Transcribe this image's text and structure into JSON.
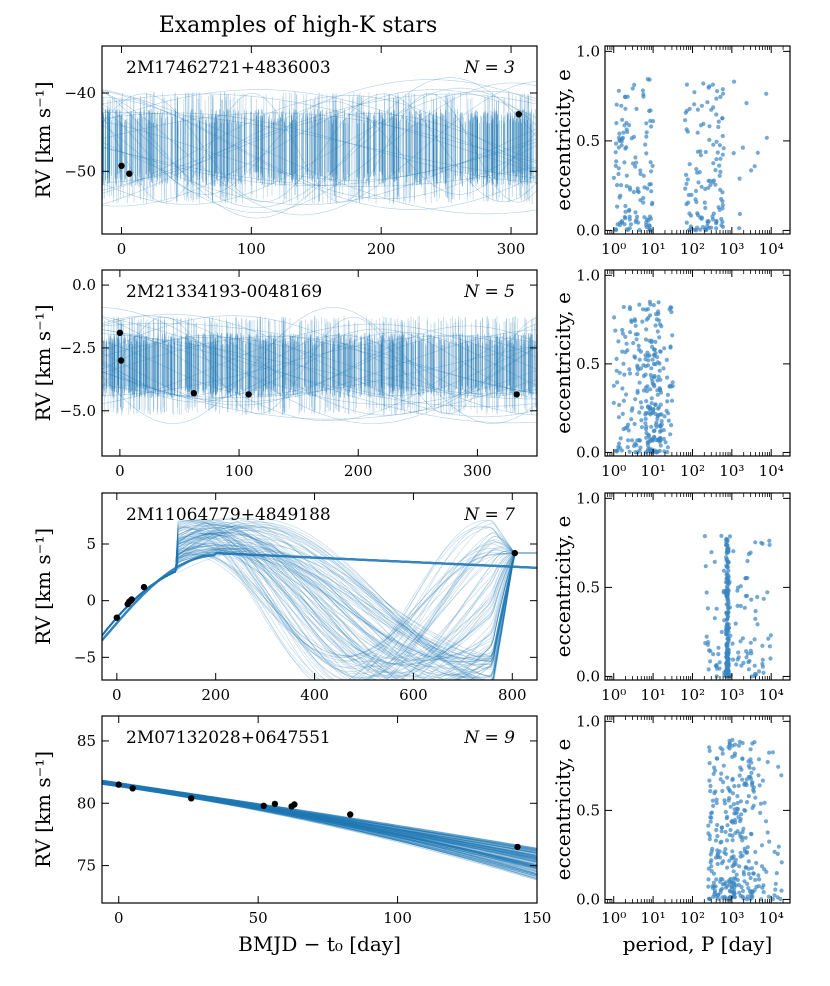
{
  "figure_title": "Examples of high-K stars",
  "colors": {
    "model_lines": "#1f77b4",
    "scatter": "#3a86c2",
    "data_points": "#000000",
    "axes": "#000000"
  },
  "chart_data": [
    {
      "type": "line",
      "panel": "rv-1",
      "title": "2M17462721+4836003",
      "n_label": "N = 3",
      "xlabel": "",
      "ylabel": "RV [km s⁻¹]",
      "xlim": [
        -15,
        320
      ],
      "ylim": [
        -58,
        -34
      ],
      "xticks": [
        0,
        100,
        200,
        300
      ],
      "xtick_labels": [
        "0",
        "100",
        "200",
        "300"
      ],
      "yticks": [
        -40,
        -50
      ],
      "ytick_labels": [
        "−40",
        "−50"
      ],
      "model": {
        "kind": "periodic_band",
        "center": -47,
        "amplitude": 5,
        "spread": 12,
        "sample_count": 220
      },
      "observations": {
        "x": [
          0,
          6,
          306
        ],
        "y": [
          -49.3,
          -50.3,
          -42.7
        ]
      }
    },
    {
      "type": "scatter",
      "panel": "ecc-1",
      "xlabel": "",
      "ylabel": "eccentricity, e",
      "xscale": "log",
      "xlim": [
        0.6,
        30000
      ],
      "ylim": [
        -0.02,
        1.03
      ],
      "xtick_labels": [
        "10⁰",
        "10¹",
        "10²",
        "10³",
        "10⁴"
      ],
      "yticks": [
        0.0,
        0.5,
        1.0
      ],
      "ytick_labels": [
        "0.0",
        "0.5",
        "1.0"
      ],
      "samples": {
        "log_period_ranges": [
          [
            0,
            1
          ],
          [
            1.8,
            2.8
          ],
          [
            3,
            4
          ]
        ],
        "weights": [
          0.45,
          0.5,
          0.05
        ],
        "count": 260,
        "emax": 0.85
      }
    },
    {
      "type": "line",
      "panel": "rv-2",
      "title": "2M21334193-0048169",
      "n_label": "N = 5",
      "xlabel": "",
      "ylabel": "RV [km s⁻¹]",
      "xlim": [
        -15,
        350
      ],
      "ylim": [
        -6.8,
        0.6
      ],
      "xticks": [
        0,
        100,
        200,
        300
      ],
      "xtick_labels": [
        "0",
        "100",
        "200",
        "300"
      ],
      "yticks": [
        0,
        -2.5,
        -5
      ],
      "ytick_labels": [
        "0.0",
        "−2.5",
        "−5.0"
      ],
      "model": {
        "kind": "periodic_band",
        "center": -3.2,
        "amplitude": 1.3,
        "spread": 3.3,
        "sample_count": 260
      },
      "observations": {
        "x": [
          0,
          1,
          62,
          108,
          333
        ],
        "y": [
          -1.9,
          -3.0,
          -4.3,
          -4.35,
          -4.35
        ]
      }
    },
    {
      "type": "scatter",
      "panel": "ecc-2",
      "xlabel": "",
      "ylabel": "eccentricity, e",
      "xscale": "log",
      "xlim": [
        0.6,
        30000
      ],
      "ylim": [
        -0.02,
        1.03
      ],
      "xtick_labels": [
        "10⁰",
        "10¹",
        "10²",
        "10³",
        "10⁴"
      ],
      "yticks": [
        0.0,
        0.5,
        1.0
      ],
      "ytick_labels": [
        "0.0",
        "0.5",
        "1.0"
      ],
      "samples": {
        "log_period_ranges": [
          [
            0,
            0.8
          ],
          [
            0.8,
            1.2
          ],
          [
            1.2,
            1.5
          ]
        ],
        "weights": [
          0.35,
          0.5,
          0.15
        ],
        "count": 280,
        "emax": 0.85
      }
    },
    {
      "type": "line",
      "panel": "rv-3",
      "title": "2M11064779+4849188",
      "n_label": "N = 7",
      "xlabel": "",
      "ylabel": "RV [km s⁻¹]",
      "xlim": [
        -30,
        850
      ],
      "ylim": [
        -7,
        9.5
      ],
      "xticks": [
        0,
        200,
        400,
        600,
        800
      ],
      "xtick_labels": [
        "0",
        "200",
        "400",
        "600",
        "800"
      ],
      "yticks": [
        5,
        0,
        -5
      ],
      "ytick_labels": [
        "5",
        "0",
        "−5"
      ],
      "model": {
        "kind": "long_period",
        "center": -1.2,
        "amplitude": 5.5,
        "spread": 3,
        "sample_count": 120
      },
      "observations": {
        "x": [
          0,
          22,
          25,
          28,
          30,
          55,
          805
        ],
        "y": [
          -1.5,
          -0.3,
          -0.1,
          0.0,
          0.1,
          1.2,
          4.2
        ]
      }
    },
    {
      "type": "scatter",
      "panel": "ecc-3",
      "xlabel": "",
      "ylabel": "eccentricity, e",
      "xscale": "log",
      "xlim": [
        0.6,
        30000
      ],
      "ylim": [
        -0.02,
        1.03
      ],
      "xtick_labels": [
        "10⁰",
        "10¹",
        "10²",
        "10³",
        "10⁴"
      ],
      "yticks": [
        0.0,
        0.5,
        1.0
      ],
      "ytick_labels": [
        "0.0",
        "0.5",
        "1.0"
      ],
      "samples": {
        "log_period_ranges": [
          [
            2.85,
            2.92
          ],
          [
            2.3,
            3.6
          ],
          [
            3.6,
            4.0
          ]
        ],
        "weights": [
          0.6,
          0.35,
          0.05
        ],
        "count": 300,
        "emax": 0.8
      }
    },
    {
      "type": "line",
      "panel": "rv-4",
      "title": "2M07132028+0647551",
      "n_label": "N = 9",
      "xlabel": "BMJD − t₀ [day]",
      "ylabel": "RV [km s⁻¹]",
      "xlim": [
        -6,
        150
      ],
      "ylim": [
        72,
        87
      ],
      "xticks": [
        0,
        50,
        100,
        150
      ],
      "xtick_labels": [
        "0",
        "50",
        "100",
        "150"
      ],
      "yticks": [
        85,
        80,
        75
      ],
      "ytick_labels": [
        "85",
        "80",
        "75"
      ],
      "model": {
        "kind": "trend",
        "intercept": 81.5,
        "slope": -0.033,
        "curvature": -6e-05,
        "sample_count": 120
      },
      "observations": {
        "x": [
          0,
          5,
          26,
          52,
          56,
          62,
          63,
          83,
          143
        ],
        "y": [
          81.5,
          81.2,
          80.4,
          79.8,
          79.95,
          79.75,
          79.9,
          79.1,
          76.5
        ]
      }
    },
    {
      "type": "scatter",
      "panel": "ecc-4",
      "xlabel": "period, P [day]",
      "ylabel": "eccentricity, e",
      "xscale": "log",
      "xlim": [
        0.6,
        30000
      ],
      "ylim": [
        -0.02,
        1.03
      ],
      "xtick_labels": [
        "10⁰",
        "10¹",
        "10²",
        "10³",
        "10⁴"
      ],
      "yticks": [
        0.0,
        0.5,
        1.0
      ],
      "ytick_labels": [
        "0.0",
        "0.5",
        "1.0"
      ],
      "samples": {
        "log_period_ranges": [
          [
            2.4,
            3.0
          ],
          [
            3.0,
            3.6
          ],
          [
            3.6,
            4.3
          ]
        ],
        "weights": [
          0.45,
          0.45,
          0.1
        ],
        "count": 330,
        "emax": 0.9
      }
    }
  ]
}
